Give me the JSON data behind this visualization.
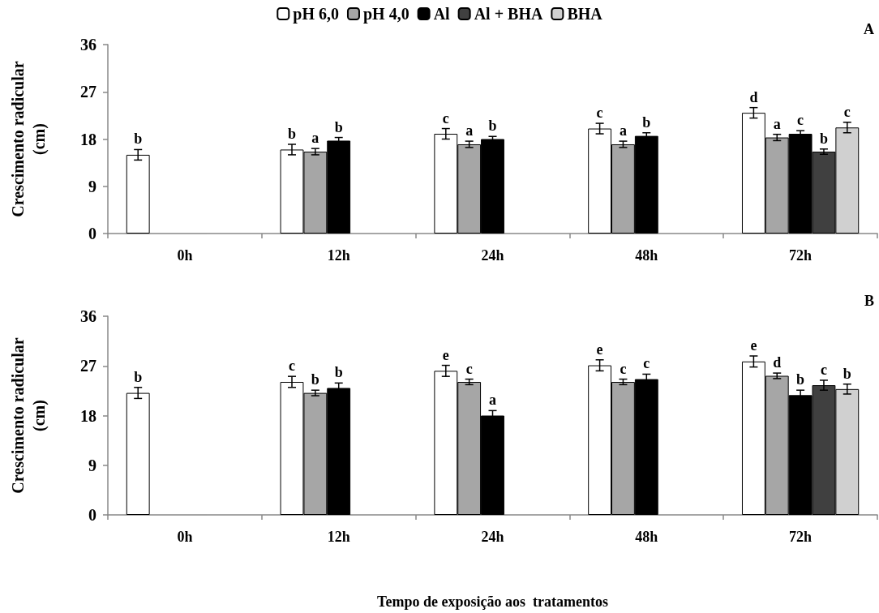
{
  "chart_data": [
    {
      "type": "bar",
      "categories": [
        "0h",
        "12h",
        "24h",
        "48h",
        "72h"
      ],
      "ylabel": "Crescimento radicular\n(cm)",
      "ylim": [
        0,
        36
      ],
      "yticks": [
        0,
        9,
        18,
        27,
        36
      ],
      "grid": false,
      "legend": "top",
      "annotations": [
        "A"
      ],
      "series": [
        {
          "name": "pH 6,0",
          "color": "#ffffff",
          "values": [
            15.0,
            16.0,
            19.0,
            20.0,
            23.0
          ],
          "errors": [
            1.0,
            1.0,
            1.0,
            1.0,
            1.0
          ],
          "value_labels": [
            "b",
            "b",
            "c",
            "c",
            "d"
          ]
        },
        {
          "name": "pH 4,0",
          "color": "#a6a6a6",
          "values": [
            null,
            15.6,
            17.0,
            17.0,
            18.3
          ],
          "errors": [
            null,
            0.6,
            0.6,
            0.6,
            0.6
          ],
          "value_labels": [
            null,
            "a",
            "a",
            "a",
            "a"
          ]
        },
        {
          "name": "Al",
          "color": "#000000",
          "values": [
            null,
            17.7,
            18.0,
            18.6,
            19.0
          ],
          "errors": [
            null,
            0.6,
            0.5,
            0.6,
            0.6
          ],
          "value_labels": [
            null,
            "b",
            "b",
            "b",
            "c"
          ]
        },
        {
          "name": "Al + BHA",
          "color": "#404040",
          "values": [
            null,
            null,
            null,
            null,
            15.6
          ],
          "errors": [
            null,
            null,
            null,
            null,
            0.5
          ],
          "value_labels": [
            null,
            null,
            null,
            null,
            "b"
          ]
        },
        {
          "name": "BHA",
          "color": "#d0d0d0",
          "values": [
            null,
            null,
            null,
            null,
            20.2
          ],
          "errors": [
            null,
            null,
            null,
            null,
            1.0
          ],
          "value_labels": [
            null,
            null,
            null,
            null,
            "c"
          ]
        }
      ]
    },
    {
      "type": "bar",
      "categories": [
        "0h",
        "12h",
        "24h",
        "48h",
        "72h"
      ],
      "xlabel": "Tempo de exposição aos  tratamentos",
      "ylabel": "Crescimento radicular\n(cm)",
      "ylim": [
        0,
        36
      ],
      "yticks": [
        0,
        9,
        18,
        27,
        36
      ],
      "grid": false,
      "legend": false,
      "annotations": [
        "B"
      ],
      "series": [
        {
          "color": "#ffffff",
          "values": [
            22.1,
            24.1,
            26.1,
            27.1,
            27.8
          ],
          "errors": [
            1.0,
            1.0,
            1.0,
            1.0,
            1.0
          ],
          "value_labels": [
            "b",
            "c",
            "e",
            "e",
            "e"
          ]
        },
        {
          "color": "#a6a6a6",
          "values": [
            null,
            22.1,
            24.1,
            24.1,
            25.2
          ],
          "errors": [
            null,
            0.5,
            0.5,
            0.5,
            0.5
          ],
          "value_labels": [
            null,
            "b",
            "c",
            "c",
            "d"
          ]
        },
        {
          "color": "#000000",
          "values": [
            null,
            23.0,
            18.0,
            24.6,
            21.7
          ],
          "errors": [
            null,
            0.9,
            0.9,
            0.9,
            0.9
          ],
          "value_labels": [
            null,
            "b",
            "a",
            "c",
            "b"
          ]
        },
        {
          "color": "#404040",
          "values": [
            null,
            null,
            null,
            null,
            23.5
          ],
          "errors": [
            null,
            null,
            null,
            null,
            0.9
          ],
          "value_labels": [
            null,
            null,
            null,
            null,
            "c"
          ]
        },
        {
          "color": "#d0d0d0",
          "values": [
            null,
            null,
            null,
            null,
            22.8
          ],
          "errors": [
            null,
            null,
            null,
            null,
            0.9
          ],
          "value_labels": [
            null,
            null,
            null,
            null,
            "b"
          ]
        }
      ]
    }
  ]
}
